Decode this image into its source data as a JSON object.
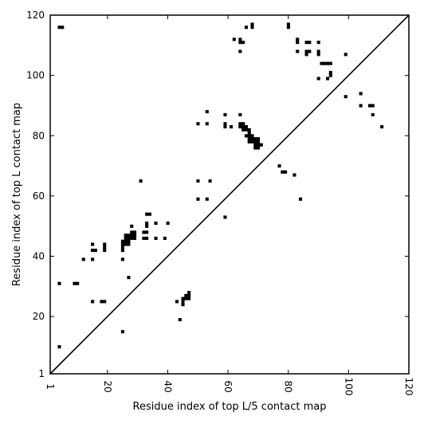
{
  "chart_data": {
    "type": "scatter",
    "title": "",
    "xlabel": "Residue index of top L/5 contact map",
    "ylabel": "Residue index of top L contact map",
    "xlim": [
      1,
      120
    ],
    "ylim": [
      1,
      120
    ],
    "x_ticks": [
      1,
      20,
      40,
      60,
      80,
      100,
      120
    ],
    "y_ticks": [
      1,
      20,
      40,
      60,
      80,
      100,
      120
    ],
    "x_tick_labels": [
      "1",
      "20",
      "40",
      "60",
      "80",
      "100",
      "120"
    ],
    "y_tick_labels": [
      "1",
      "20",
      "40",
      "60",
      "80",
      "100",
      "120"
    ],
    "x_tick_rotation": "rotated",
    "grid": false,
    "legend": "none",
    "marker": "square",
    "marker_color": "#000000",
    "diagonal_line": {
      "from": [
        1,
        1
      ],
      "to": [
        120,
        120
      ]
    },
    "points": [
      [
        4,
        116
      ],
      [
        5,
        116
      ],
      [
        64,
        112
      ],
      [
        65,
        111
      ],
      [
        66,
        116
      ],
      [
        68,
        117
      ],
      [
        68,
        116
      ],
      [
        62,
        112
      ],
      [
        64,
        111
      ],
      [
        64,
        108
      ],
      [
        80,
        117
      ],
      [
        80,
        116
      ],
      [
        83,
        112
      ],
      [
        83,
        111
      ],
      [
        86,
        111
      ],
      [
        87,
        111
      ],
      [
        90,
        111
      ],
      [
        83,
        108
      ],
      [
        86,
        108
      ],
      [
        87,
        108
      ],
      [
        86,
        107
      ],
      [
        90,
        108
      ],
      [
        90,
        107
      ],
      [
        91,
        104
      ],
      [
        92,
        104
      ],
      [
        93,
        104
      ],
      [
        94,
        104
      ],
      [
        94,
        101
      ],
      [
        94,
        100
      ],
      [
        93,
        99
      ],
      [
        90,
        99
      ],
      [
        99,
        107
      ],
      [
        99,
        93
      ],
      [
        104,
        94
      ],
      [
        104,
        90
      ],
      [
        107,
        90
      ],
      [
        108,
        90
      ],
      [
        108,
        87
      ],
      [
        111,
        83
      ],
      [
        50,
        84
      ],
      [
        53,
        84
      ],
      [
        53,
        88
      ],
      [
        59,
        87
      ],
      [
        59,
        84
      ],
      [
        59,
        83
      ],
      [
        61,
        83
      ],
      [
        64,
        87
      ],
      [
        64,
        84
      ],
      [
        65,
        84
      ],
      [
        64,
        83
      ],
      [
        65,
        83
      ],
      [
        66,
        83
      ],
      [
        66,
        82
      ],
      [
        67,
        82
      ],
      [
        67,
        81
      ],
      [
        66,
        80
      ],
      [
        67,
        80
      ],
      [
        68,
        80
      ],
      [
        68,
        79
      ],
      [
        67,
        79
      ],
      [
        67,
        78
      ],
      [
        68,
        78
      ],
      [
        69,
        78
      ],
      [
        69,
        79
      ],
      [
        70,
        79
      ],
      [
        70,
        78
      ],
      [
        70,
        77
      ],
      [
        69,
        77
      ],
      [
        69,
        76
      ],
      [
        70,
        76
      ],
      [
        71,
        77
      ],
      [
        65,
        82
      ],
      [
        77,
        70
      ],
      [
        78,
        68
      ],
      [
        79,
        68
      ],
      [
        82,
        67
      ],
      [
        84,
        59
      ],
      [
        31,
        65
      ],
      [
        50,
        65
      ],
      [
        54,
        65
      ],
      [
        50,
        59
      ],
      [
        53,
        59
      ],
      [
        59,
        53
      ],
      [
        33,
        54
      ],
      [
        34,
        54
      ],
      [
        33,
        51
      ],
      [
        36,
        51
      ],
      [
        40,
        51
      ],
      [
        33,
        50
      ],
      [
        28,
        50
      ],
      [
        28,
        48
      ],
      [
        29,
        48
      ],
      [
        28,
        47
      ],
      [
        29,
        47
      ],
      [
        28,
        46
      ],
      [
        29,
        46
      ],
      [
        27,
        47
      ],
      [
        27,
        46
      ],
      [
        26,
        47
      ],
      [
        26,
        46
      ],
      [
        26,
        45
      ],
      [
        27,
        45
      ],
      [
        27,
        44
      ],
      [
        26,
        44
      ],
      [
        25,
        45
      ],
      [
        25,
        44
      ],
      [
        25,
        43
      ],
      [
        25,
        42
      ],
      [
        33,
        48
      ],
      [
        32,
        48
      ],
      [
        33,
        46
      ],
      [
        32,
        46
      ],
      [
        36,
        46
      ],
      [
        39,
        46
      ],
      [
        15,
        44
      ],
      [
        15,
        42
      ],
      [
        16,
        42
      ],
      [
        19,
        44
      ],
      [
        19,
        43
      ],
      [
        19,
        42
      ],
      [
        12,
        39
      ],
      [
        15,
        39
      ],
      [
        25,
        39
      ],
      [
        27,
        33
      ],
      [
        4,
        31
      ],
      [
        9,
        31
      ],
      [
        10,
        31
      ],
      [
        15,
        25
      ],
      [
        18,
        25
      ],
      [
        19,
        25
      ],
      [
        43,
        25
      ],
      [
        45,
        25
      ],
      [
        45,
        24
      ],
      [
        45,
        26
      ],
      [
        46,
        26
      ],
      [
        46,
        27
      ],
      [
        47,
        27
      ],
      [
        47,
        26
      ],
      [
        47,
        28
      ],
      [
        44,
        19
      ],
      [
        25,
        15
      ],
      [
        4,
        10
      ]
    ]
  }
}
